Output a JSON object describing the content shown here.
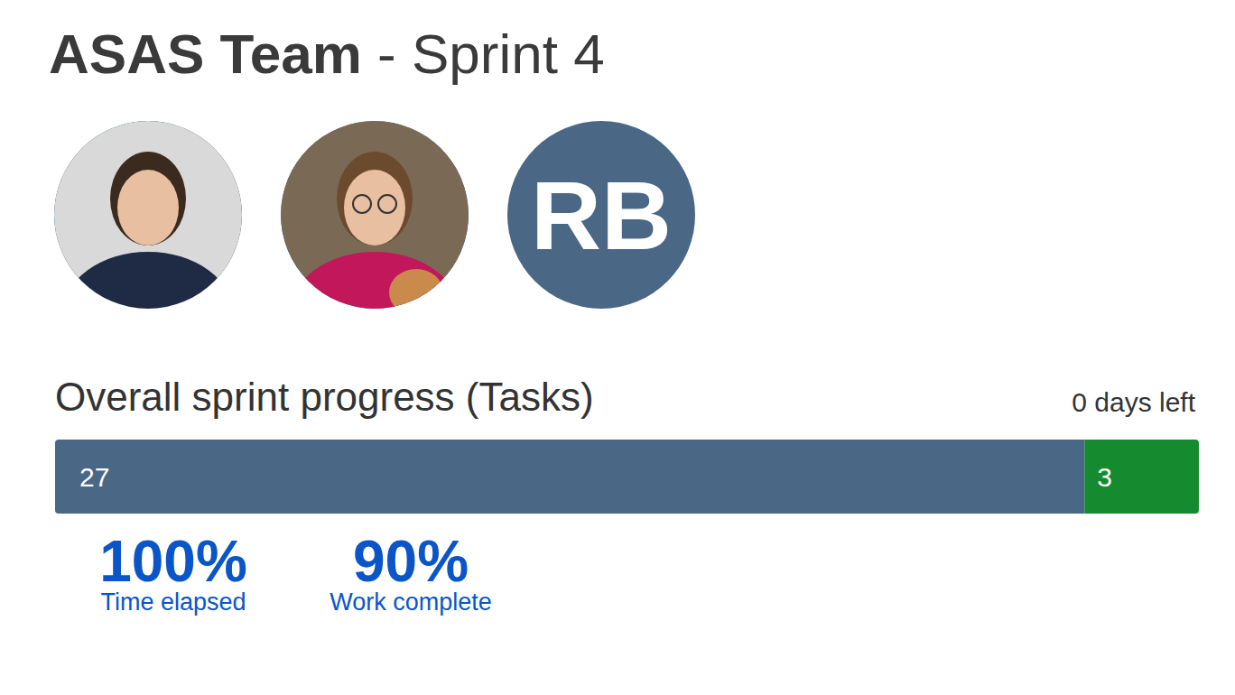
{
  "header": {
    "title": "ASAS Team - Sprint 4"
  },
  "members": [
    {
      "initials": null
    },
    {
      "initials": null
    },
    {
      "initials": "RB"
    }
  ],
  "chart_data": {
    "type": "bar",
    "orientation": "horizontal",
    "stacked": true,
    "title": "Overall sprint progress (Tasks)",
    "subtitle": "0 days left",
    "categories": [
      null
    ],
    "series": [
      {
        "color": "#4a6785",
        "values": [
          27
        ]
      },
      {
        "color": "#168a2e",
        "values": [
          3
        ]
      }
    ],
    "xlim": [
      0,
      30
    ],
    "data_labels": true,
    "tick_labels": false
  },
  "stats": {
    "values": [
      100,
      90
    ],
    "value_labels": [
      "100%",
      "90%"
    ],
    "labels": [
      "Time elapsed",
      "Work complete"
    ]
  }
}
